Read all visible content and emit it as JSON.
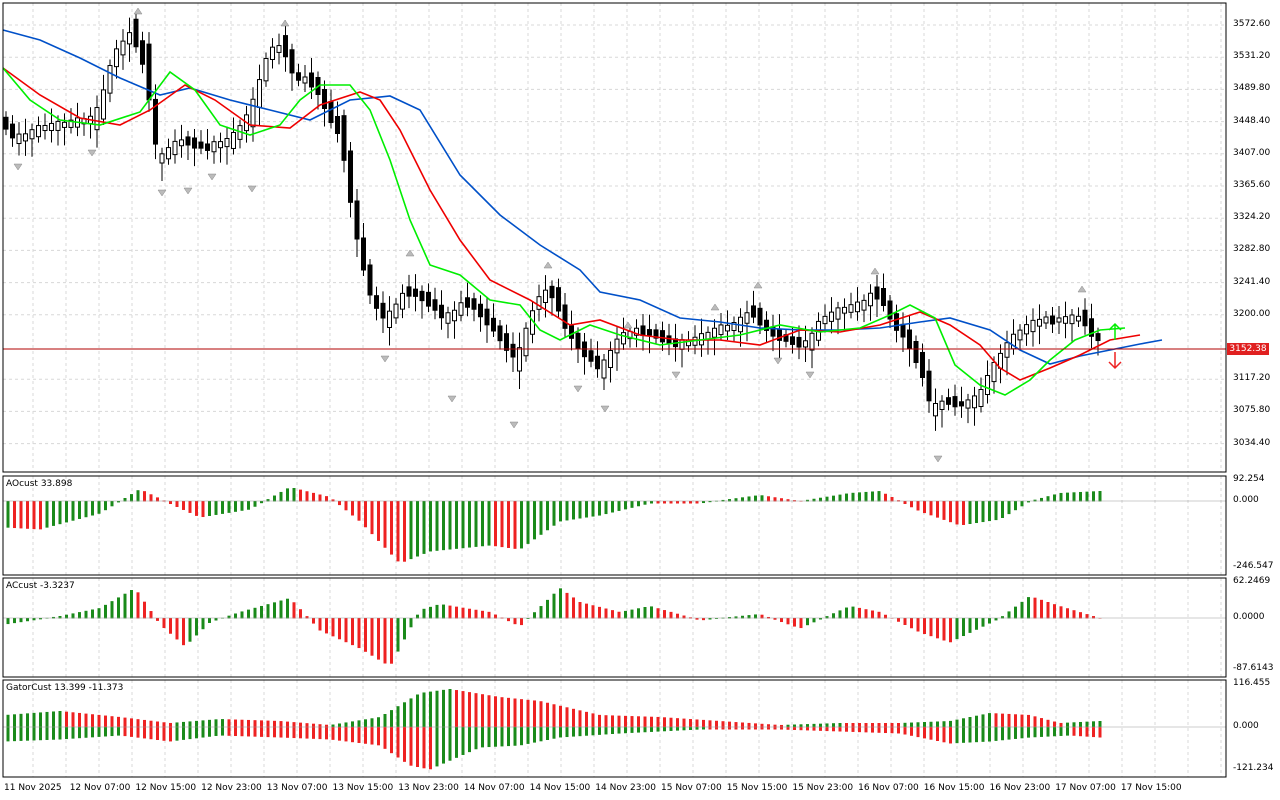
{
  "chart": {
    "symbol_hint": "",
    "current_price": "3152.38",
    "colors": {
      "bull_candle": "#ffffff",
      "bear_candle": "#000000",
      "ma_fast": "#00ee00",
      "ma_mid": "#ee0000",
      "ma_slow": "#0050c8",
      "bid_line": "#b00000",
      "hist_up": "#1a8a1a",
      "hist_down": "#ee2222",
      "grid": "#d8d8d8"
    },
    "price_axis": [
      "3572.60",
      "3531.20",
      "3489.80",
      "3448.40",
      "3407.00",
      "3365.60",
      "3324.20",
      "3282.80",
      "3241.40",
      "3200.00",
      "3117.20",
      "3075.80",
      "3034.40"
    ],
    "time_axis": [
      "11 Nov 2025",
      "12 Nov 07:00",
      "12 Nov 15:00",
      "12 Nov 23:00",
      "13 Nov 07:00",
      "13 Nov 15:00",
      "13 Nov 23:00",
      "14 Nov 07:00",
      "14 Nov 15:00",
      "14 Nov 23:00",
      "15 Nov 07:00",
      "15 Nov 15:00",
      "15 Nov 23:00",
      "16 Nov 07:00",
      "16 Nov 15:00",
      "16 Nov 23:00",
      "17 Nov 07:00",
      "17 Nov 15:00"
    ]
  },
  "indicators": {
    "ao": {
      "label": "AOcust 33.898",
      "axis": [
        "92.254",
        "0.000",
        "-246.547"
      ]
    },
    "ac": {
      "label": "ACcust -3.3237",
      "axis": [
        "62.2469",
        "0.0000",
        "-87.6143"
      ]
    },
    "gator": {
      "label": "GatorCust 13.399 -11.373",
      "axis": [
        "116.455",
        "0.000",
        "-121.234"
      ]
    }
  }
}
